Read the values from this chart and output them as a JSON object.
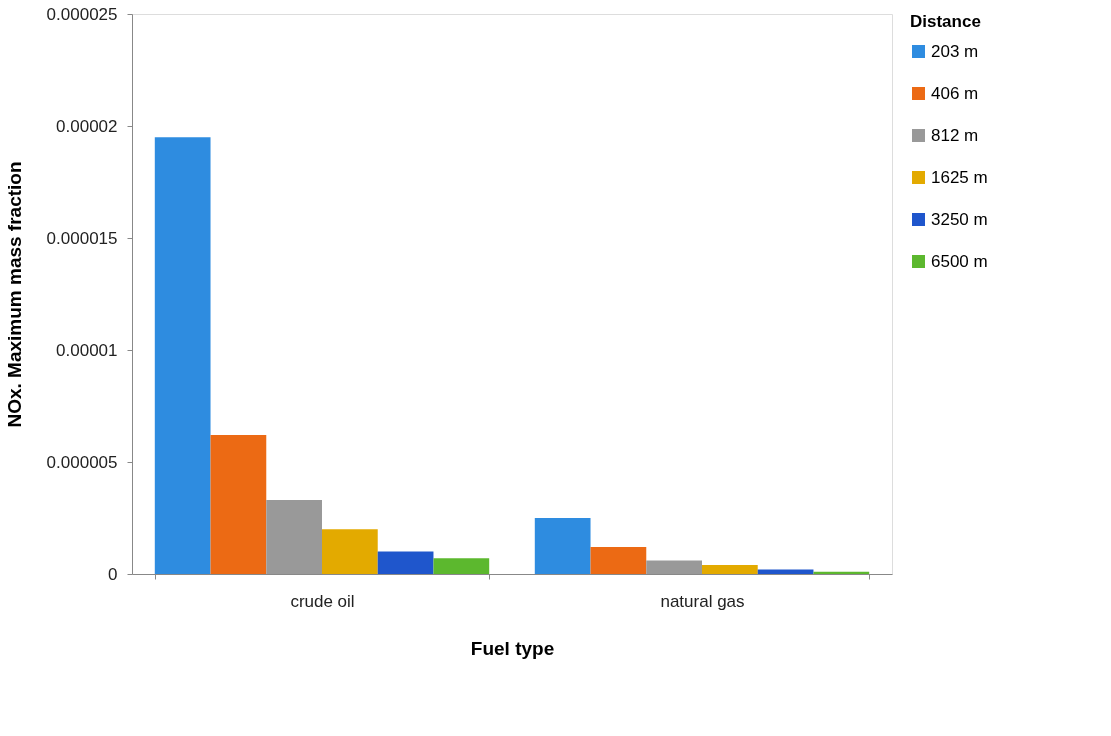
{
  "chart_data": {
    "type": "bar",
    "xlabel": "Fuel type",
    "ylabel": "NOx. Maximum mass fraction",
    "legend_title": "Distance",
    "legend": "right",
    "categories": [
      "crude oil",
      "natural gas"
    ],
    "series": [
      {
        "name": "203 m",
        "color": "#2e8ce0",
        "values": [
          1.95e-05,
          2.5e-06
        ]
      },
      {
        "name": "406 m",
        "color": "#ec6a14",
        "values": [
          6.2e-06,
          1.2e-06
        ]
      },
      {
        "name": "812 m",
        "color": "#999999",
        "values": [
          3.3e-06,
          6e-07
        ]
      },
      {
        "name": "1625 m",
        "color": "#e3aa00",
        "values": [
          2e-06,
          4e-07
        ]
      },
      {
        "name": "3250 m",
        "color": "#1f56cc",
        "values": [
          1e-06,
          2e-07
        ]
      },
      {
        "name": "6500 m",
        "color": "#5cb82e",
        "values": [
          7e-07,
          1e-07
        ]
      }
    ],
    "ylim": [
      0,
      2.5e-05
    ],
    "yticks": [
      0,
      {
        "value": 5e-06,
        "label": "0.000005"
      },
      {
        "value": 1e-05,
        "label": "0.00001"
      },
      {
        "value": 1.5e-05,
        "label": "0.000015"
      },
      {
        "value": 2e-05,
        "label": "0.00002"
      },
      {
        "value": 2.5e-05,
        "label": "0.000025"
      }
    ],
    "grid": false
  }
}
